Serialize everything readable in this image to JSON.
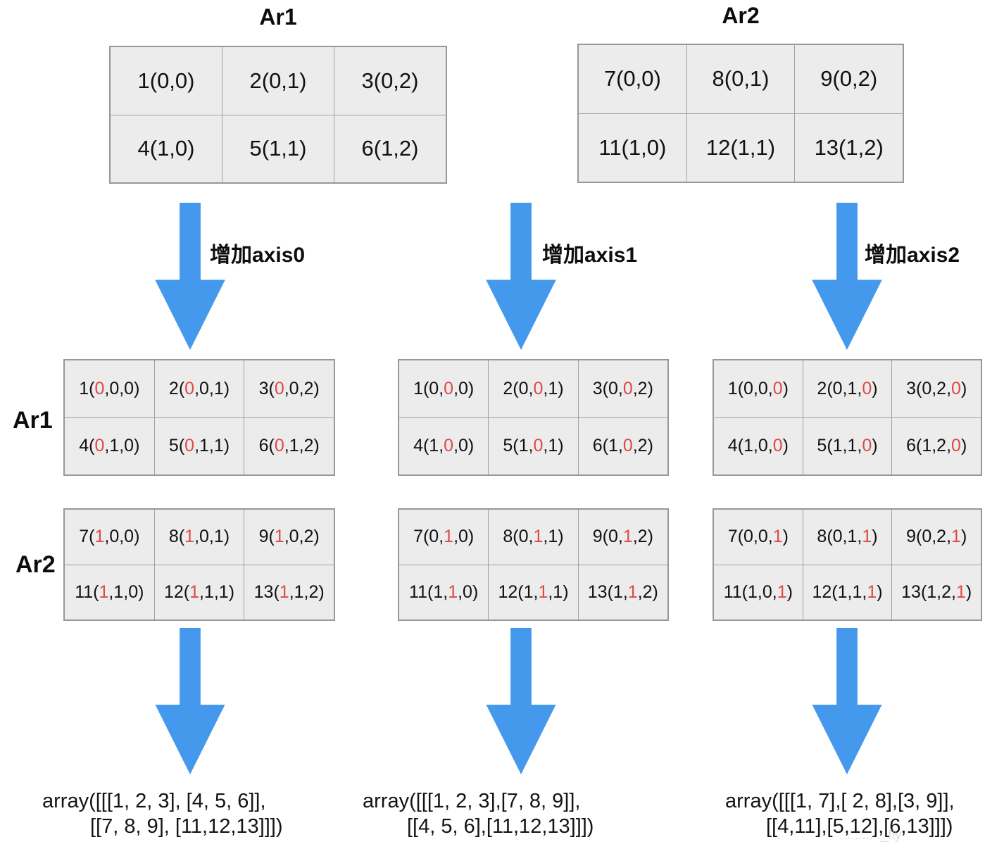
{
  "colors": {
    "arrow_blue": "#4599ec",
    "highlight_red": "#e04848",
    "cell_bg": "#ececec",
    "cell_border": "#a0a0a0",
    "watermark_gray": "#c3c3cf"
  },
  "top_tables": [
    {
      "title": "Ar1",
      "rows": [
        [
          "1(0,0)",
          "2(0,1)",
          "3(0,2)"
        ],
        [
          "4(1,0)",
          "5(1,1)",
          "6(1,2)"
        ]
      ]
    },
    {
      "title": "Ar2",
      "rows": [
        [
          "7(0,0)",
          "8(0,1)",
          "9(0,2)"
        ],
        [
          "11(1,0)",
          "12(1,1)",
          "13(1,2)"
        ]
      ]
    }
  ],
  "row_labels": [
    {
      "label": "Ar1"
    },
    {
      "label": "Ar2"
    }
  ],
  "columns": [
    {
      "arrow_label": "增加axis0",
      "ar1_table": {
        "rows": [
          [
            {
              "pre": "1(",
              "red": "0",
              "post": ",0,0)"
            },
            {
              "pre": "2(",
              "red": "0",
              "post": ",0,1)"
            },
            {
              "pre": "3(",
              "red": "0",
              "post": ",0,2)"
            }
          ],
          [
            {
              "pre": "4(",
              "red": "0",
              "post": ",1,0)"
            },
            {
              "pre": "5(",
              "red": "0",
              "post": ",1,1)"
            },
            {
              "pre": "6(",
              "red": "0",
              "post": ",1,2)"
            }
          ]
        ]
      },
      "ar2_table": {
        "rows": [
          [
            {
              "pre": "7(",
              "red": "1",
              "post": ",0,0)"
            },
            {
              "pre": "8(",
              "red": "1",
              "post": ",0,1)"
            },
            {
              "pre": "9(",
              "red": "1",
              "post": ",0,2)"
            }
          ],
          [
            {
              "pre": "11(",
              "red": "1",
              "post": ",1,0)"
            },
            {
              "pre": "12(",
              "red": "1",
              "post": ",1,1)"
            },
            {
              "pre": "13(",
              "red": "1",
              "post": ",1,2)"
            }
          ]
        ]
      },
      "result_line1": "array([[[1, 2, 3], [4, 5, 6]],",
      "result_line2": "[[7, 8, 9], [11,12,13]]])"
    },
    {
      "arrow_label": "增加axis1",
      "ar1_table": {
        "rows": [
          [
            {
              "pre": "1(0,",
              "red": "0",
              "post": ",0)"
            },
            {
              "pre": "2(0,",
              "red": "0",
              "post": ",1)"
            },
            {
              "pre": "3(0,",
              "red": "0",
              "post": ",2)"
            }
          ],
          [
            {
              "pre": "4(1,",
              "red": "0",
              "post": ",0)"
            },
            {
              "pre": "5(1,",
              "red": "0",
              "post": ",1)"
            },
            {
              "pre": "6(1,",
              "red": "0",
              "post": ",2)"
            }
          ]
        ]
      },
      "ar2_table": {
        "rows": [
          [
            {
              "pre": "7(0,",
              "red": "1",
              "post": ",0)"
            },
            {
              "pre": "8(0,",
              "red": "1",
              "post": ",1)"
            },
            {
              "pre": "9(0,",
              "red": "1",
              "post": ",2)"
            }
          ],
          [
            {
              "pre": "11(1,",
              "red": "1",
              "post": ",0)"
            },
            {
              "pre": "12(1,",
              "red": "1",
              "post": ",1)"
            },
            {
              "pre": "13(1,",
              "red": "1",
              "post": ",2)"
            }
          ]
        ]
      },
      "result_line1": "array([[[1, 2, 3],[7, 8, 9]],",
      "result_line2": "[[4, 5, 6],[11,12,13]]])"
    },
    {
      "arrow_label": "增加axis2",
      "ar1_table": {
        "rows": [
          [
            {
              "pre": "1(0,0,",
              "red": "0",
              "post": ")"
            },
            {
              "pre": "2(0,1,",
              "red": "0",
              "post": ")"
            },
            {
              "pre": "3(0,2,",
              "red": "0",
              "post": ")"
            }
          ],
          [
            {
              "pre": "4(1,0,",
              "red": "0",
              "post": ")"
            },
            {
              "pre": "5(1,1,",
              "red": "0",
              "post": ")"
            },
            {
              "pre": "6(1,2,",
              "red": "0",
              "post": ")"
            }
          ]
        ]
      },
      "ar2_table": {
        "rows": [
          [
            {
              "pre": "7(0,0,",
              "red": "1",
              "post": ")"
            },
            {
              "pre": "8(0,1,",
              "red": "1",
              "post": ")"
            },
            {
              "pre": "9(0,2,",
              "red": "1",
              "post": ")"
            }
          ],
          [
            {
              "pre": "11(1,0,",
              "red": "1",
              "post": ")"
            },
            {
              "pre": "12(1,1,",
              "red": "1",
              "post": ")"
            },
            {
              "pre": "13(1,2,",
              "red": "1",
              "post": ")"
            }
          ]
        ]
      },
      "result_line1": "array([[[1, 7],[ 2, 8],[3, 9]],",
      "result_line2": "[[4,11],[5,12],[6,13]]])"
    }
  ],
  "watermark": ".........._fly"
}
